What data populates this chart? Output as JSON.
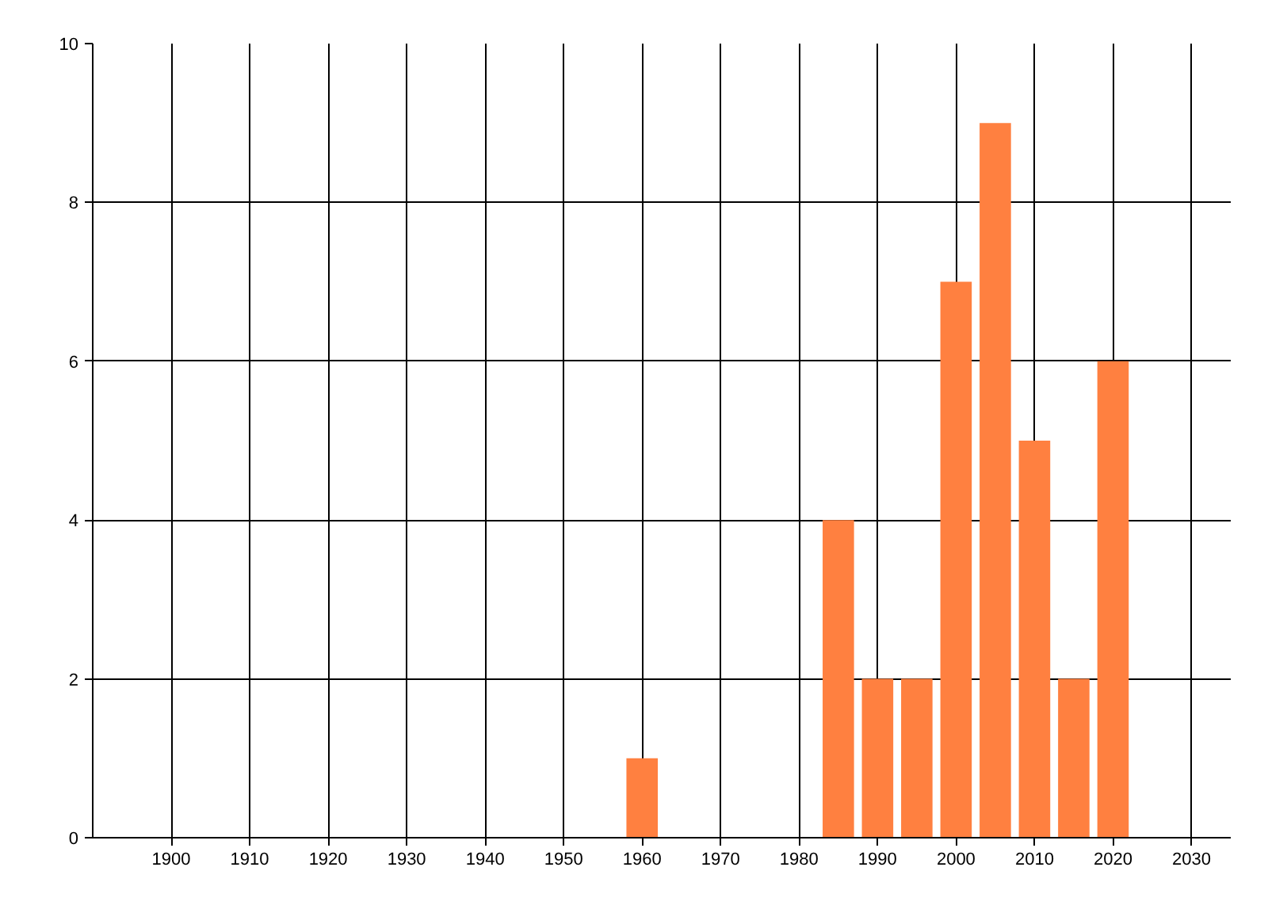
{
  "chart_data": {
    "type": "bar",
    "x": [
      1960,
      1985,
      1990,
      1995,
      2000,
      2005,
      2010,
      2015,
      2020
    ],
    "values": [
      1,
      4,
      2,
      2,
      7,
      9,
      5,
      2,
      6
    ],
    "color": "#ff8040",
    "xlim": [
      1890,
      2035
    ],
    "ylim": [
      0,
      10
    ],
    "xticks": [
      1900,
      1910,
      1920,
      1930,
      1940,
      1950,
      1960,
      1970,
      1980,
      1990,
      2000,
      2010,
      2020,
      2030
    ],
    "yticks": [
      0,
      2,
      4,
      6,
      8,
      10
    ],
    "grid": true
  }
}
